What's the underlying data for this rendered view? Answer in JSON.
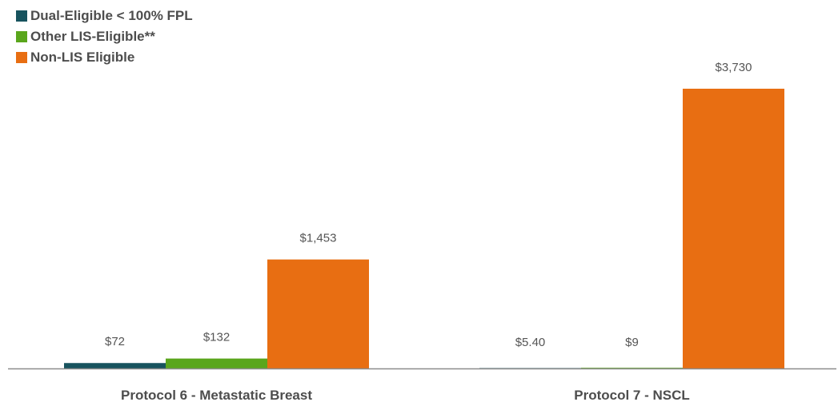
{
  "chart_data": {
    "type": "bar",
    "title": "",
    "xlabel": "",
    "ylabel": "",
    "ylim": [
      0,
      3730
    ],
    "grid": false,
    "legend_position": "top-left",
    "categories": [
      "Protocol 6 - Metastatic Breast",
      "Protocol 7 - NSCL"
    ],
    "series": [
      {
        "name": "Dual-Eligible < 100% FPL",
        "color": "#17535e",
        "values": [
          72,
          5.4
        ],
        "labels": [
          "$72",
          "$5.40"
        ]
      },
      {
        "name": "Other LIS-Eligible**",
        "color": "#5aa61c",
        "values": [
          132,
          9
        ],
        "labels": [
          "$132",
          "$9"
        ]
      },
      {
        "name": "Non-LIS Eligible",
        "color": "#e86e12",
        "values": [
          1453,
          3730
        ],
        "labels": [
          "$1,453",
          "$3,730"
        ]
      }
    ]
  }
}
